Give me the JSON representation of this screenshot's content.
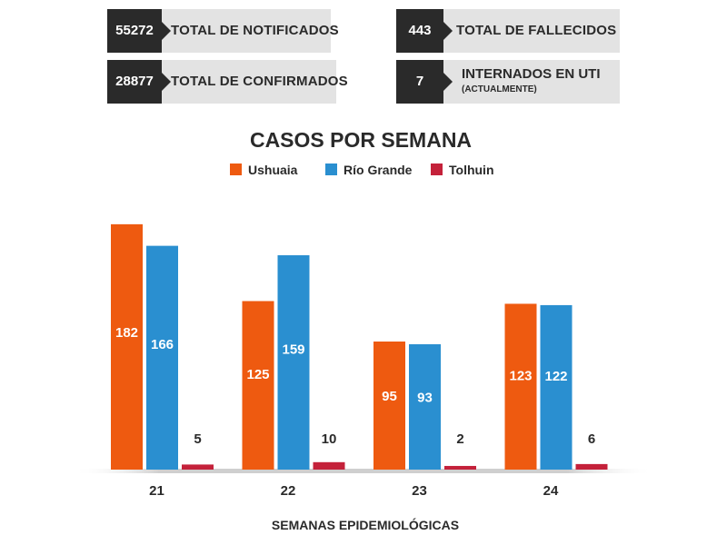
{
  "stats": {
    "notificados": {
      "value": "55272",
      "label": "TOTAL DE NOTIFICADOS"
    },
    "confirmados": {
      "value": "28877",
      "label": "TOTAL DE CONFIRMADOS"
    },
    "fallecidos": {
      "value": "443",
      "label": "TOTAL DE FALLECIDOS"
    },
    "uti": {
      "value": "7",
      "label": "INTERNADOS EN UTI",
      "sublabel": "(ACTUALMENTE)"
    }
  },
  "chart_data": {
    "type": "bar",
    "title": "CASOS POR SEMANA",
    "xlabel": "SEMANAS EPIDEMIOLÓGICAS",
    "ylabel": "",
    "categories": [
      "21",
      "22",
      "23",
      "24"
    ],
    "series": [
      {
        "name": "Ushuaia",
        "color": "#ee5a10",
        "values": [
          182,
          125,
          95,
          123
        ]
      },
      {
        "name": "Río Grande",
        "color": "#2a8fd0",
        "values": [
          166,
          159,
          93,
          122
        ]
      },
      {
        "name": "Tolhuin",
        "color": "#c4213a",
        "values": [
          5,
          10,
          2,
          6
        ]
      }
    ],
    "ylim": [
      0,
      190
    ],
    "grid": false,
    "legend": "top-center"
  }
}
